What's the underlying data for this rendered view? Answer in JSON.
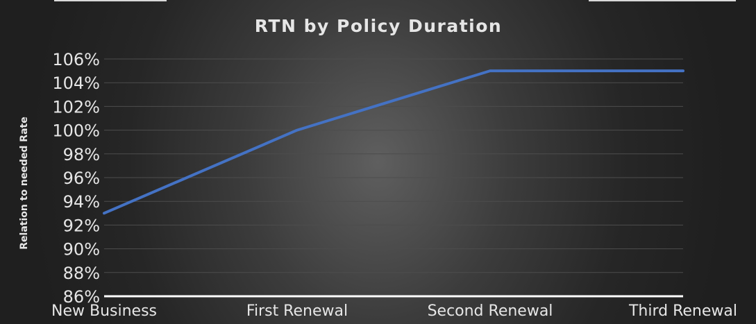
{
  "chart_data": {
    "type": "line",
    "title": "RTN by Policy Duration",
    "xlabel": "",
    "ylabel": "Relation to needed Rate",
    "categories": [
      "New Business",
      "First Renewal",
      "Second Renewal",
      "Third Renewal"
    ],
    "series": [
      {
        "values": [
          93,
          100,
          105,
          105
        ],
        "color": "#4472c4"
      }
    ],
    "ylim": [
      86,
      106
    ],
    "ytick_step": 2,
    "ytick_labels": [
      "86%",
      "88%",
      "90%",
      "92%",
      "94%",
      "96%",
      "98%",
      "100%",
      "102%",
      "104%",
      "106%"
    ],
    "grid": true,
    "legend": "none"
  },
  "colors": {
    "text": "#e6e6e6",
    "gridline": "#4d4d4d",
    "axis_line": "#ffffff",
    "line": "#4472c4"
  }
}
